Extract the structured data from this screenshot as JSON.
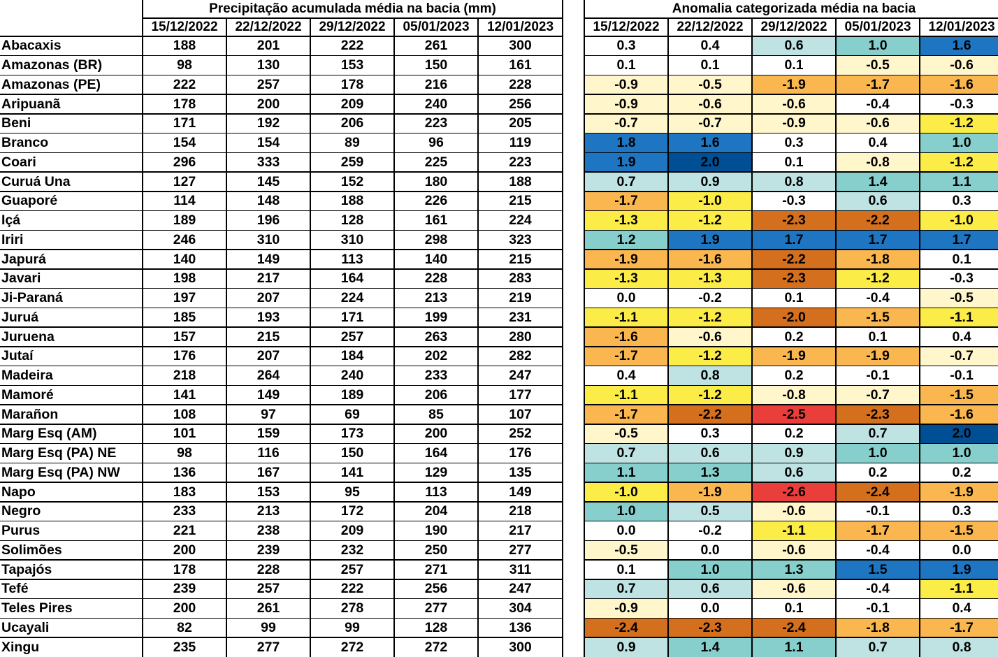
{
  "left_table": {
    "title": "Precipitação acumulada média na bacia (mm)",
    "dates": [
      "15/12/2022",
      "22/12/2022",
      "29/12/2022",
      "05/01/2023",
      "12/01/2023"
    ]
  },
  "right_table": {
    "title": "Anomalia categorizada média na bacia",
    "dates": [
      "15/12/2022",
      "22/12/2022",
      "29/12/2022",
      "05/01/2023",
      "12/01/2023"
    ]
  },
  "category_colors": {
    "-2.5": "#ea3e3a",
    "-2": "#d46f1e",
    "-1.5": "#fbb74f",
    "-1": "#fbec48",
    "-0.5": "#fff6cc",
    "0": "#ffffff",
    "0.5": "#bfe3e3",
    "1": "#86cfcc",
    "1.5": "#1e76c3",
    "2": "#004e94"
  },
  "rows": [
    {
      "name": "Abacaxis",
      "precip": [
        "188",
        "201",
        "222",
        "261",
        "300"
      ],
      "anom": [
        "0.3",
        "0.4",
        "0.6",
        "1.0",
        "1.6"
      ]
    },
    {
      "name": "Amazonas (BR)",
      "precip": [
        "98",
        "130",
        "153",
        "150",
        "161"
      ],
      "anom": [
        "0.1",
        "0.1",
        "0.1",
        "-0.5",
        "-0.6"
      ]
    },
    {
      "name": "Amazonas (PE)",
      "precip": [
        "222",
        "257",
        "178",
        "216",
        "228"
      ],
      "anom": [
        "-0.9",
        "-0.5",
        "-1.9",
        "-1.7",
        "-1.6"
      ]
    },
    {
      "name": "Aripuanã",
      "precip": [
        "178",
        "200",
        "209",
        "240",
        "256"
      ],
      "anom": [
        "-0.9",
        "-0.6",
        "-0.6",
        "-0.4",
        "-0.3"
      ]
    },
    {
      "name": "Beni",
      "precip": [
        "171",
        "192",
        "206",
        "223",
        "205"
      ],
      "anom": [
        "-0.7",
        "-0.7",
        "-0.9",
        "-0.6",
        "-1.2"
      ]
    },
    {
      "name": "Branco",
      "precip": [
        "154",
        "154",
        "89",
        "96",
        "119"
      ],
      "anom": [
        "1.8",
        "1.6",
        "0.3",
        "0.4",
        "1.0"
      ]
    },
    {
      "name": "Coari",
      "precip": [
        "296",
        "333",
        "259",
        "225",
        "223"
      ],
      "anom": [
        "1.9",
        "2.0",
        "0.1",
        "-0.8",
        "-1.2"
      ]
    },
    {
      "name": "Curuá Una",
      "precip": [
        "127",
        "145",
        "152",
        "180",
        "188"
      ],
      "anom": [
        "0.7",
        "0.9",
        "0.8",
        "1.4",
        "1.1"
      ]
    },
    {
      "name": "Guaporé",
      "precip": [
        "114",
        "148",
        "188",
        "226",
        "215"
      ],
      "anom": [
        "-1.7",
        "-1.0",
        "-0.3",
        "0.6",
        "0.3"
      ]
    },
    {
      "name": "Içá",
      "precip": [
        "189",
        "196",
        "128",
        "161",
        "224"
      ],
      "anom": [
        "-1.3",
        "-1.2",
        "-2.3",
        "-2.2",
        "-1.0"
      ]
    },
    {
      "name": "Iriri",
      "precip": [
        "246",
        "310",
        "310",
        "298",
        "323"
      ],
      "anom": [
        "1.2",
        "1.9",
        "1.7",
        "1.7",
        "1.7"
      ]
    },
    {
      "name": "Japurá",
      "precip": [
        "140",
        "149",
        "113",
        "140",
        "215"
      ],
      "anom": [
        "-1.9",
        "-1.6",
        "-2.2",
        "-1.8",
        "0.1"
      ]
    },
    {
      "name": "Javari",
      "precip": [
        "198",
        "217",
        "164",
        "228",
        "283"
      ],
      "anom": [
        "-1.3",
        "-1.3",
        "-2.3",
        "-1.2",
        "-0.3"
      ]
    },
    {
      "name": "Ji-Paraná",
      "precip": [
        "197",
        "207",
        "224",
        "213",
        "219"
      ],
      "anom": [
        "0.0",
        "-0.2",
        "0.1",
        "-0.4",
        "-0.5"
      ]
    },
    {
      "name": "Juruá",
      "precip": [
        "185",
        "193",
        "171",
        "199",
        "231"
      ],
      "anom": [
        "-1.1",
        "-1.2",
        "-2.0",
        "-1.5",
        "-1.1"
      ]
    },
    {
      "name": "Juruena",
      "precip": [
        "157",
        "215",
        "257",
        "263",
        "280"
      ],
      "anom": [
        "-1.6",
        "-0.6",
        "0.2",
        "0.1",
        "0.4"
      ]
    },
    {
      "name": "Jutaí",
      "precip": [
        "176",
        "207",
        "184",
        "202",
        "282"
      ],
      "anom": [
        "-1.7",
        "-1.2",
        "-1.9",
        "-1.9",
        "-0.7"
      ]
    },
    {
      "name": "Madeira",
      "precip": [
        "218",
        "264",
        "240",
        "233",
        "247"
      ],
      "anom": [
        "0.4",
        "0.8",
        "0.2",
        "-0.1",
        "-0.1"
      ]
    },
    {
      "name": "Mamoré",
      "precip": [
        "141",
        "149",
        "189",
        "206",
        "177"
      ],
      "anom": [
        "-1.1",
        "-1.2",
        "-0.8",
        "-0.7",
        "-1.5"
      ]
    },
    {
      "name": "Marañon",
      "precip": [
        "108",
        "97",
        "69",
        "85",
        "107"
      ],
      "anom": [
        "-1.7",
        "-2.2",
        "-2.5",
        "-2.3",
        "-1.6"
      ]
    },
    {
      "name": "Marg Esq (AM)",
      "precip": [
        "101",
        "159",
        "173",
        "200",
        "252"
      ],
      "anom": [
        "-0.5",
        "0.3",
        "0.2",
        "0.7",
        "2.0"
      ]
    },
    {
      "name": "Marg Esq (PA) NE",
      "precip": [
        "98",
        "116",
        "150",
        "164",
        "176"
      ],
      "anom": [
        "0.7",
        "0.6",
        "0.9",
        "1.0",
        "1.0"
      ]
    },
    {
      "name": "Marg Esq (PA) NW",
      "precip": [
        "136",
        "167",
        "141",
        "129",
        "135"
      ],
      "anom": [
        "1.1",
        "1.3",
        "0.6",
        "0.2",
        "0.2"
      ]
    },
    {
      "name": "Napo",
      "precip": [
        "183",
        "153",
        "95",
        "113",
        "149"
      ],
      "anom": [
        "-1.0",
        "-1.9",
        "-2.6",
        "-2.4",
        "-1.9"
      ]
    },
    {
      "name": "Negro",
      "precip": [
        "233",
        "213",
        "172",
        "204",
        "218"
      ],
      "anom": [
        "1.0",
        "0.5",
        "-0.6",
        "-0.1",
        "0.3"
      ]
    },
    {
      "name": "Purus",
      "precip": [
        "221",
        "238",
        "209",
        "190",
        "217"
      ],
      "anom": [
        "0.0",
        "-0.2",
        "-1.1",
        "-1.7",
        "-1.5"
      ]
    },
    {
      "name": "Solimões",
      "precip": [
        "200",
        "239",
        "232",
        "250",
        "277"
      ],
      "anom": [
        "-0.5",
        "0.0",
        "-0.6",
        "-0.4",
        "0.0"
      ]
    },
    {
      "name": "Tapajós",
      "precip": [
        "178",
        "228",
        "257",
        "271",
        "311"
      ],
      "anom": [
        "0.1",
        "1.0",
        "1.3",
        "1.5",
        "1.9"
      ]
    },
    {
      "name": "Tefé",
      "precip": [
        "239",
        "257",
        "222",
        "256",
        "247"
      ],
      "anom": [
        "0.7",
        "0.6",
        "-0.6",
        "-0.4",
        "-1.1"
      ]
    },
    {
      "name": "Teles Pires",
      "precip": [
        "200",
        "261",
        "278",
        "277",
        "304"
      ],
      "anom": [
        "-0.9",
        "0.0",
        "0.1",
        "-0.1",
        "0.4"
      ]
    },
    {
      "name": "Ucayali",
      "precip": [
        "82",
        "99",
        "99",
        "128",
        "136"
      ],
      "anom": [
        "-2.4",
        "-2.3",
        "-2.4",
        "-1.8",
        "-1.7"
      ]
    },
    {
      "name": "Xingu",
      "precip": [
        "235",
        "277",
        "272",
        "272",
        "300"
      ],
      "anom": [
        "0.9",
        "1.4",
        "1.1",
        "0.7",
        "0.8"
      ]
    }
  ]
}
